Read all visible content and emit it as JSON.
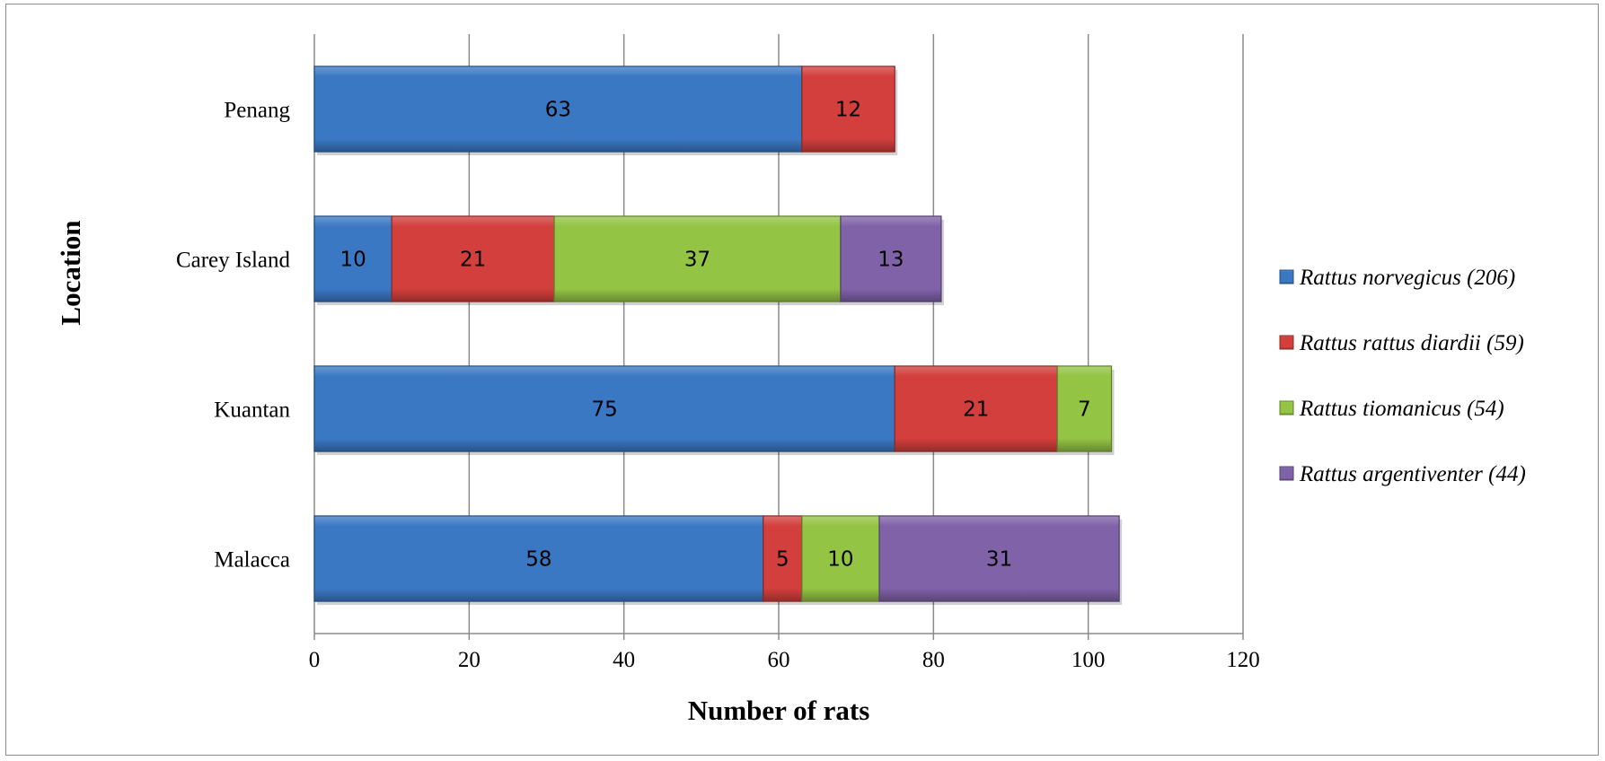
{
  "chart_data": {
    "type": "bar",
    "orientation": "horizontal",
    "stacked": true,
    "categories": [
      "Malacca",
      "Kuantan",
      "Carey Island",
      "Penang"
    ],
    "series": [
      {
        "name": "Rattus norvegicus (206)",
        "color": "#3b78c4",
        "values": [
          58,
          75,
          10,
          63
        ]
      },
      {
        "name": "Rattus rattus diardii (59)",
        "color": "#d23f3c",
        "values": [
          5,
          21,
          21,
          12
        ]
      },
      {
        "name": "Rattus tiomanicus (54)",
        "color": "#93c444",
        "values": [
          10,
          7,
          37,
          0
        ]
      },
      {
        "name": "Rattus argentiventer (44)",
        "color": "#8062a8",
        "values": [
          31,
          0,
          13,
          0
        ]
      }
    ],
    "xlabel": "Number of rats",
    "ylabel": "Location",
    "xlim": [
      0,
      120
    ],
    "xticks": [
      "0",
      "20",
      "40",
      "60",
      "80",
      "100",
      "120"
    ],
    "grid": "vertical",
    "legend_position": "right"
  }
}
